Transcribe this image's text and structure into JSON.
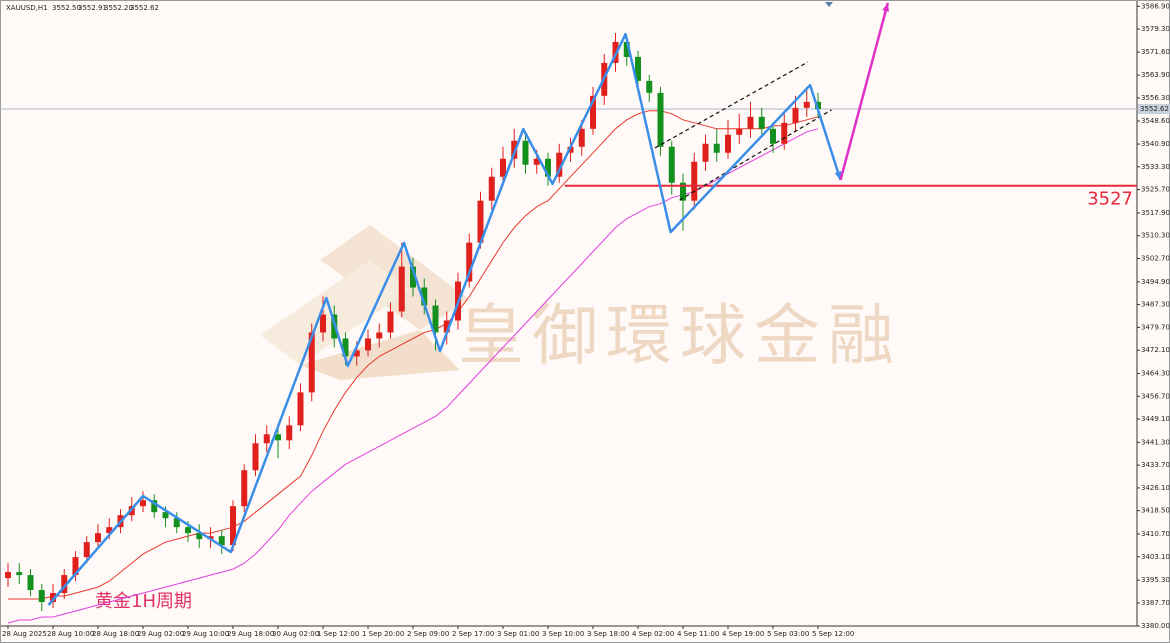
{
  "chart_data": {
    "type": "candlestick",
    "symbol": "XAUUSD,H1",
    "quote": [
      "3552.50",
      "3552.91",
      "3552.20",
      "3552.62"
    ],
    "annotation": "黄金1H周期",
    "watermark": "皇御環球金融",
    "up_color": "#e0201c",
    "down_color": "#14901e",
    "categories": [
      "28 Aug 2025",
      null,
      null,
      null,
      "28 Aug 10:00",
      null,
      null,
      null,
      "28 Aug 18:00",
      null,
      null,
      null,
      "29 Aug 02:00",
      null,
      null,
      null,
      "29 Aug 10:00",
      null,
      null,
      null,
      "29 Aug 18:00",
      null,
      null,
      null,
      "30 Aug 02:00",
      null,
      null,
      null,
      "1 Sep 12:00",
      null,
      null,
      null,
      "1 Sep 20:00",
      null,
      null,
      null,
      "2 Sep 09:00",
      null,
      null,
      null,
      "2 Sep 17:00",
      null,
      null,
      null,
      "3 Sep 01:00",
      null,
      null,
      null,
      "3 Sep 10:00",
      null,
      null,
      null,
      "3 Sep 18:00",
      null,
      null,
      null,
      "4 Sep 02:00",
      null,
      null,
      null,
      "4 Sep 11:00",
      null,
      null,
      null,
      "4 Sep 19:00",
      null,
      null,
      null,
      "5 Sep 03:00",
      null,
      null,
      null,
      "5 Sep 12:00"
    ],
    "open": [
      3396,
      3398,
      3397,
      3392,
      3388,
      3391,
      3397,
      3403,
      3408,
      3411,
      3413,
      3417,
      3420,
      3422,
      3418,
      3416,
      3413,
      3411,
      3409,
      3410,
      3407,
      3420,
      3432,
      3441,
      3444,
      3442,
      3447,
      3458,
      3478,
      3484,
      3476,
      3470,
      3472,
      3476,
      3478,
      3485,
      3500,
      3493,
      3487,
      3478,
      3482,
      3495,
      3508,
      3522,
      3530,
      3536,
      3542,
      3534,
      3536,
      3530,
      3538,
      3540,
      3546,
      3557,
      3568,
      3575,
      3570,
      3562,
      3558,
      3540,
      3528,
      3522,
      3535,
      3541,
      3538,
      3544,
      3546,
      3550,
      3546,
      3541,
      3548,
      3553,
      3555
    ],
    "high": [
      3401,
      3401,
      3399,
      3394,
      3394,
      3399,
      3405,
      3410,
      3414,
      3416,
      3419,
      3423,
      3425,
      3424,
      3420,
      3418,
      3415,
      3414,
      3413,
      3412,
      3422,
      3434,
      3444,
      3447,
      3447,
      3450,
      3461,
      3481,
      3490,
      3487,
      3478,
      3475,
      3479,
      3481,
      3488,
      3508,
      3503,
      3496,
      3489,
      3485,
      3498,
      3511,
      3525,
      3533,
      3540,
      3546,
      3544,
      3539,
      3538,
      3541,
      3543,
      3549,
      3560,
      3571,
      3578,
      3577,
      3572,
      3564,
      3560,
      3542,
      3531,
      3538,
      3544,
      3546,
      3549,
      3551,
      3555,
      3553,
      3548,
      3552,
      3557,
      3560,
      3558
    ],
    "low": [
      3393,
      3394,
      3390,
      3385,
      3386,
      3389,
      3395,
      3401,
      3406,
      3409,
      3411,
      3415,
      3418,
      3416,
      3413,
      3411,
      3408,
      3406,
      3406,
      3404,
      3405,
      3418,
      3430,
      3438,
      3436,
      3439,
      3445,
      3455,
      3475,
      3473,
      3467,
      3467,
      3470,
      3473,
      3476,
      3483,
      3490,
      3484,
      3472,
      3474,
      3479,
      3493,
      3506,
      3519,
      3527,
      3533,
      3531,
      3531,
      3527,
      3528,
      3535,
      3537,
      3544,
      3554,
      3565,
      3567,
      3559,
      3555,
      3537,
      3524,
      3512,
      3519,
      3532,
      3535,
      3536,
      3541,
      3543,
      3543,
      3538,
      3539,
      3545,
      3550,
      3550
    ],
    "close": [
      3398,
      3397,
      3392,
      3388,
      3391,
      3397,
      3403,
      3408,
      3411,
      3413,
      3417,
      3420,
      3422,
      3418,
      3416,
      3413,
      3411,
      3409,
      3410,
      3407,
      3420,
      3432,
      3441,
      3444,
      3442,
      3447,
      3458,
      3478,
      3484,
      3476,
      3470,
      3472,
      3476,
      3478,
      3485,
      3500,
      3493,
      3487,
      3478,
      3482,
      3495,
      3508,
      3522,
      3530,
      3536,
      3542,
      3534,
      3536,
      3530,
      3538,
      3540,
      3546,
      3557,
      3568,
      3575,
      3570,
      3562,
      3558,
      3540,
      3528,
      3522,
      3535,
      3541,
      3538,
      3544,
      3546,
      3550,
      3546,
      3541,
      3548,
      3553,
      3555,
      3552.62
    ],
    "series": [
      {
        "color": "#e8392e",
        "values": [
          3389,
          3389,
          3389,
          3389,
          3390,
          3390,
          3391,
          3392,
          3393,
          3395,
          3398,
          3401,
          3404,
          3406,
          3408,
          3409,
          3410,
          3411,
          3411,
          3412,
          3413,
          3415,
          3418,
          3421,
          3424,
          3427,
          3430,
          3437,
          3445,
          3452,
          3458,
          3463,
          3467,
          3470,
          3472,
          3474,
          3476,
          3478,
          3479,
          3481,
          3485,
          3490,
          3496,
          3502,
          3508,
          3513,
          3517,
          3520,
          3522,
          3526,
          3530,
          3534,
          3538,
          3542,
          3546,
          3549,
          3551,
          3552,
          3552,
          3551,
          3549,
          3548,
          3547,
          3546,
          3546,
          3546,
          3546,
          3546,
          3547,
          3547,
          3548,
          3549,
          3550
        ]
      },
      {
        "color": "#e040e0",
        "values": [
          3381,
          3382,
          3382,
          3383,
          3383,
          3384,
          3385,
          3386,
          3387,
          3388,
          3389,
          3390,
          3391,
          3392,
          3393,
          3394,
          3395,
          3396,
          3397,
          3398,
          3399,
          3401,
          3404,
          3408,
          3412,
          3417,
          3421,
          3425,
          3428,
          3431,
          3434,
          3436,
          3438,
          3440,
          3442,
          3444,
          3446,
          3448,
          3450,
          3453,
          3457,
          3461,
          3465,
          3469,
          3473,
          3477,
          3481,
          3485,
          3489,
          3493,
          3497,
          3501,
          3505,
          3509,
          3513,
          3516,
          3518,
          3520,
          3521,
          3523,
          3524,
          3525,
          3527,
          3529,
          3531,
          3533,
          3535,
          3537,
          3539,
          3541,
          3543,
          3545,
          3546
        ]
      }
    ],
    "zigzag": {
      "color": "#3a8ee8",
      "x": [
        3.6,
        12,
        19.8,
        28.3,
        30.2,
        35.2,
        38.4,
        45.8,
        48.4,
        54.9,
        58.9,
        71.3,
        74
      ],
      "values": [
        3387,
        3423.4,
        3404.7,
        3489.5,
        3466.8,
        3507.9,
        3471.8,
        3545.9,
        3527.6,
        3577.6,
        3511.5,
        3560.6,
        3528.9
      ]
    },
    "arrow": {
      "color": "#e030c8",
      "x": [
        74,
        78.2
      ],
      "values": [
        3528.9,
        3588
      ]
    },
    "channel": [
      {
        "x": [
          57.5,
          71.1
        ],
        "values": [
          3539.6,
          3568.3
        ]
      },
      {
        "x": [
          59.7,
          73.2
        ],
        "values": [
          3522.2,
          3552.3
        ]
      }
    ],
    "level": {
      "value": 3527,
      "label": "3527",
      "color": "#e8283c"
    },
    "current_price": {
      "value": 3552.62,
      "label": "3552.62"
    },
    "ylim": [
      3380,
      3589
    ],
    "yticks": [
      {
        "value": 3586.9,
        "label": "3586.90"
      },
      {
        "value": 3579.3,
        "label": "3579.30"
      },
      {
        "value": 3571.6,
        "label": "3571.60"
      },
      {
        "value": 3563.9,
        "label": "3563.90"
      },
      {
        "value": 3556.3,
        "label": "3556.30"
      },
      {
        "value": 3548.6,
        "label": "3548.60"
      },
      {
        "value": 3540.9,
        "label": "3540.90"
      },
      {
        "value": 3533.3,
        "label": "3533.30"
      },
      {
        "value": 3525.7,
        "label": "3525.70"
      },
      {
        "value": 3517.9,
        "label": "3517.90"
      },
      {
        "value": 3510.3,
        "label": "3510.30"
      },
      {
        "value": 3502.7,
        "label": "3502.70"
      },
      {
        "value": 3494.9,
        "label": "3494.90"
      },
      {
        "value": 3487.3,
        "label": "3487.30"
      },
      {
        "value": 3479.7,
        "label": "3479.70"
      },
      {
        "value": 3472.1,
        "label": "3472.10"
      },
      {
        "value": 3464.3,
        "label": "3464.30"
      },
      {
        "value": 3456.7,
        "label": "3456.70"
      },
      {
        "value": 3449.1,
        "label": "3449.10"
      },
      {
        "value": 3441.3,
        "label": "3441.30"
      },
      {
        "value": 3433.7,
        "label": "3433.70"
      },
      {
        "value": 3426.1,
        "label": "3426.10"
      },
      {
        "value": 3418.5,
        "label": "3418.50"
      },
      {
        "value": 3410.7,
        "label": "3410.70"
      },
      {
        "value": 3403.1,
        "label": "3403.10"
      },
      {
        "value": 3395.3,
        "label": "3395.30"
      },
      {
        "value": 3387.7,
        "label": "3387.70"
      },
      {
        "value": 3380,
        "label": "3380.00"
      }
    ]
  }
}
